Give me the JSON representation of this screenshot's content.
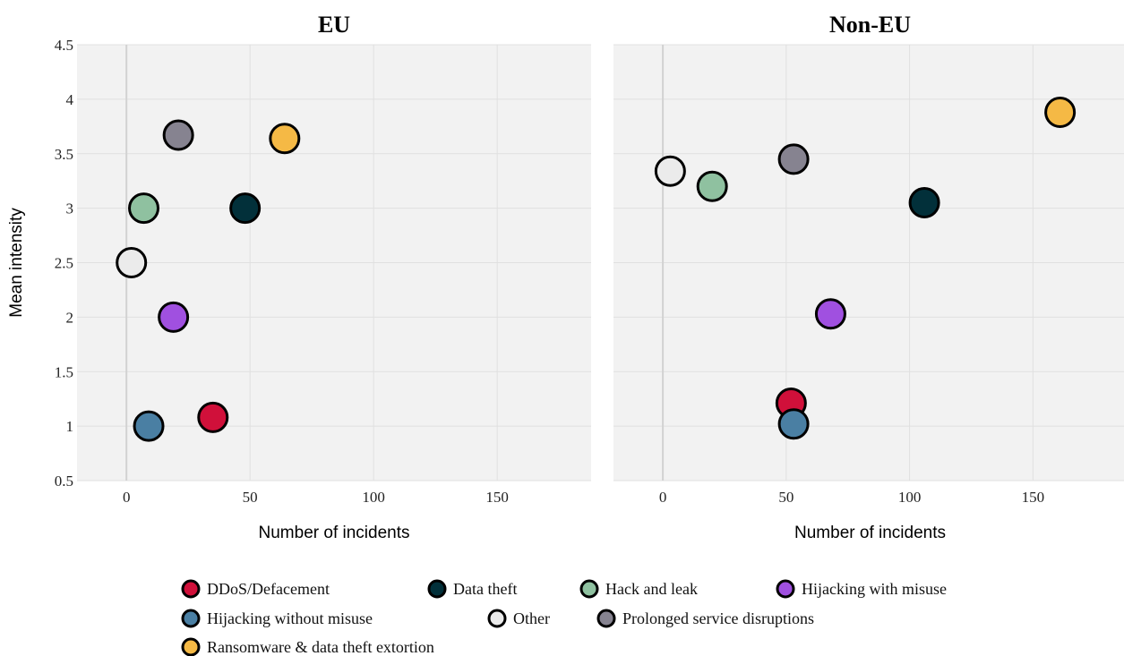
{
  "chart_data": [
    {
      "type": "scatter",
      "title": "EU",
      "xlabel": "Number of incidents",
      "ylabel": "Mean intensity",
      "xlim": [
        -20,
        188
      ],
      "ylim": [
        0.5,
        4.5
      ],
      "xticks": [
        0,
        50,
        100,
        150
      ],
      "yticks": [
        0.5,
        1,
        1.5,
        2,
        2.5,
        3,
        3.5,
        4,
        4.5
      ],
      "grid": true,
      "points": [
        {
          "category": "DDoS/Defacement",
          "x": 35,
          "y": 1.08
        },
        {
          "category": "Data theft",
          "x": 48,
          "y": 3.0
        },
        {
          "category": "Hack and leak",
          "x": 7,
          "y": 3.0
        },
        {
          "category": "Hijacking with misuse",
          "x": 19,
          "y": 2.0
        },
        {
          "category": "Hijacking without misuse",
          "x": 9,
          "y": 1.0
        },
        {
          "category": "Other",
          "x": 2,
          "y": 2.5
        },
        {
          "category": "Prolonged service disruptions",
          "x": 21,
          "y": 3.67
        },
        {
          "category": "Ransomware & data theft extortion",
          "x": 64,
          "y": 3.64
        }
      ]
    },
    {
      "type": "scatter",
      "title": "Non-EU",
      "xlabel": "Number of incidents",
      "ylabel": "",
      "xlim": [
        -20,
        188
      ],
      "ylim": [
        0.5,
        4.5
      ],
      "xticks": [
        0,
        50,
        100,
        150
      ],
      "yticks": [],
      "grid": true,
      "points": [
        {
          "category": "DDoS/Defacement",
          "x": 52,
          "y": 1.21
        },
        {
          "category": "Data theft",
          "x": 106,
          "y": 3.05
        },
        {
          "category": "Hack and leak",
          "x": 20,
          "y": 3.2
        },
        {
          "category": "Hijacking with misuse",
          "x": 68,
          "y": 2.03
        },
        {
          "category": "Hijacking without misuse",
          "x": 53,
          "y": 1.02
        },
        {
          "category": "Other",
          "x": 3,
          "y": 3.34
        },
        {
          "category": "Prolonged service disruptions",
          "x": 53,
          "y": 3.45
        },
        {
          "category": "Ransomware & data theft extortion",
          "x": 161,
          "y": 3.88
        }
      ]
    }
  ],
  "legend": {
    "placement": "bottom",
    "items": [
      {
        "label": "DDoS/Defacement",
        "color": "#D0103A"
      },
      {
        "label": "Data theft",
        "color": "#02303A"
      },
      {
        "label": "Hack and leak",
        "color": "#8FC1A0"
      },
      {
        "label": "Hijacking with misuse",
        "color": "#A050E0"
      },
      {
        "label": "Hijacking without misuse",
        "color": "#4A7FA3"
      },
      {
        "label": "Other",
        "color": "#EBEBEB"
      },
      {
        "label": "Prolonged service disruptions",
        "color": "#868390"
      },
      {
        "label": "Ransomware & data theft extortion",
        "color": "#F5B945"
      }
    ]
  },
  "colors": {
    "panel_bg": "#F2F2F2",
    "grid": "#E0E0E0",
    "zero_line": "#D2D2D2",
    "marker_outline": "#000000"
  }
}
